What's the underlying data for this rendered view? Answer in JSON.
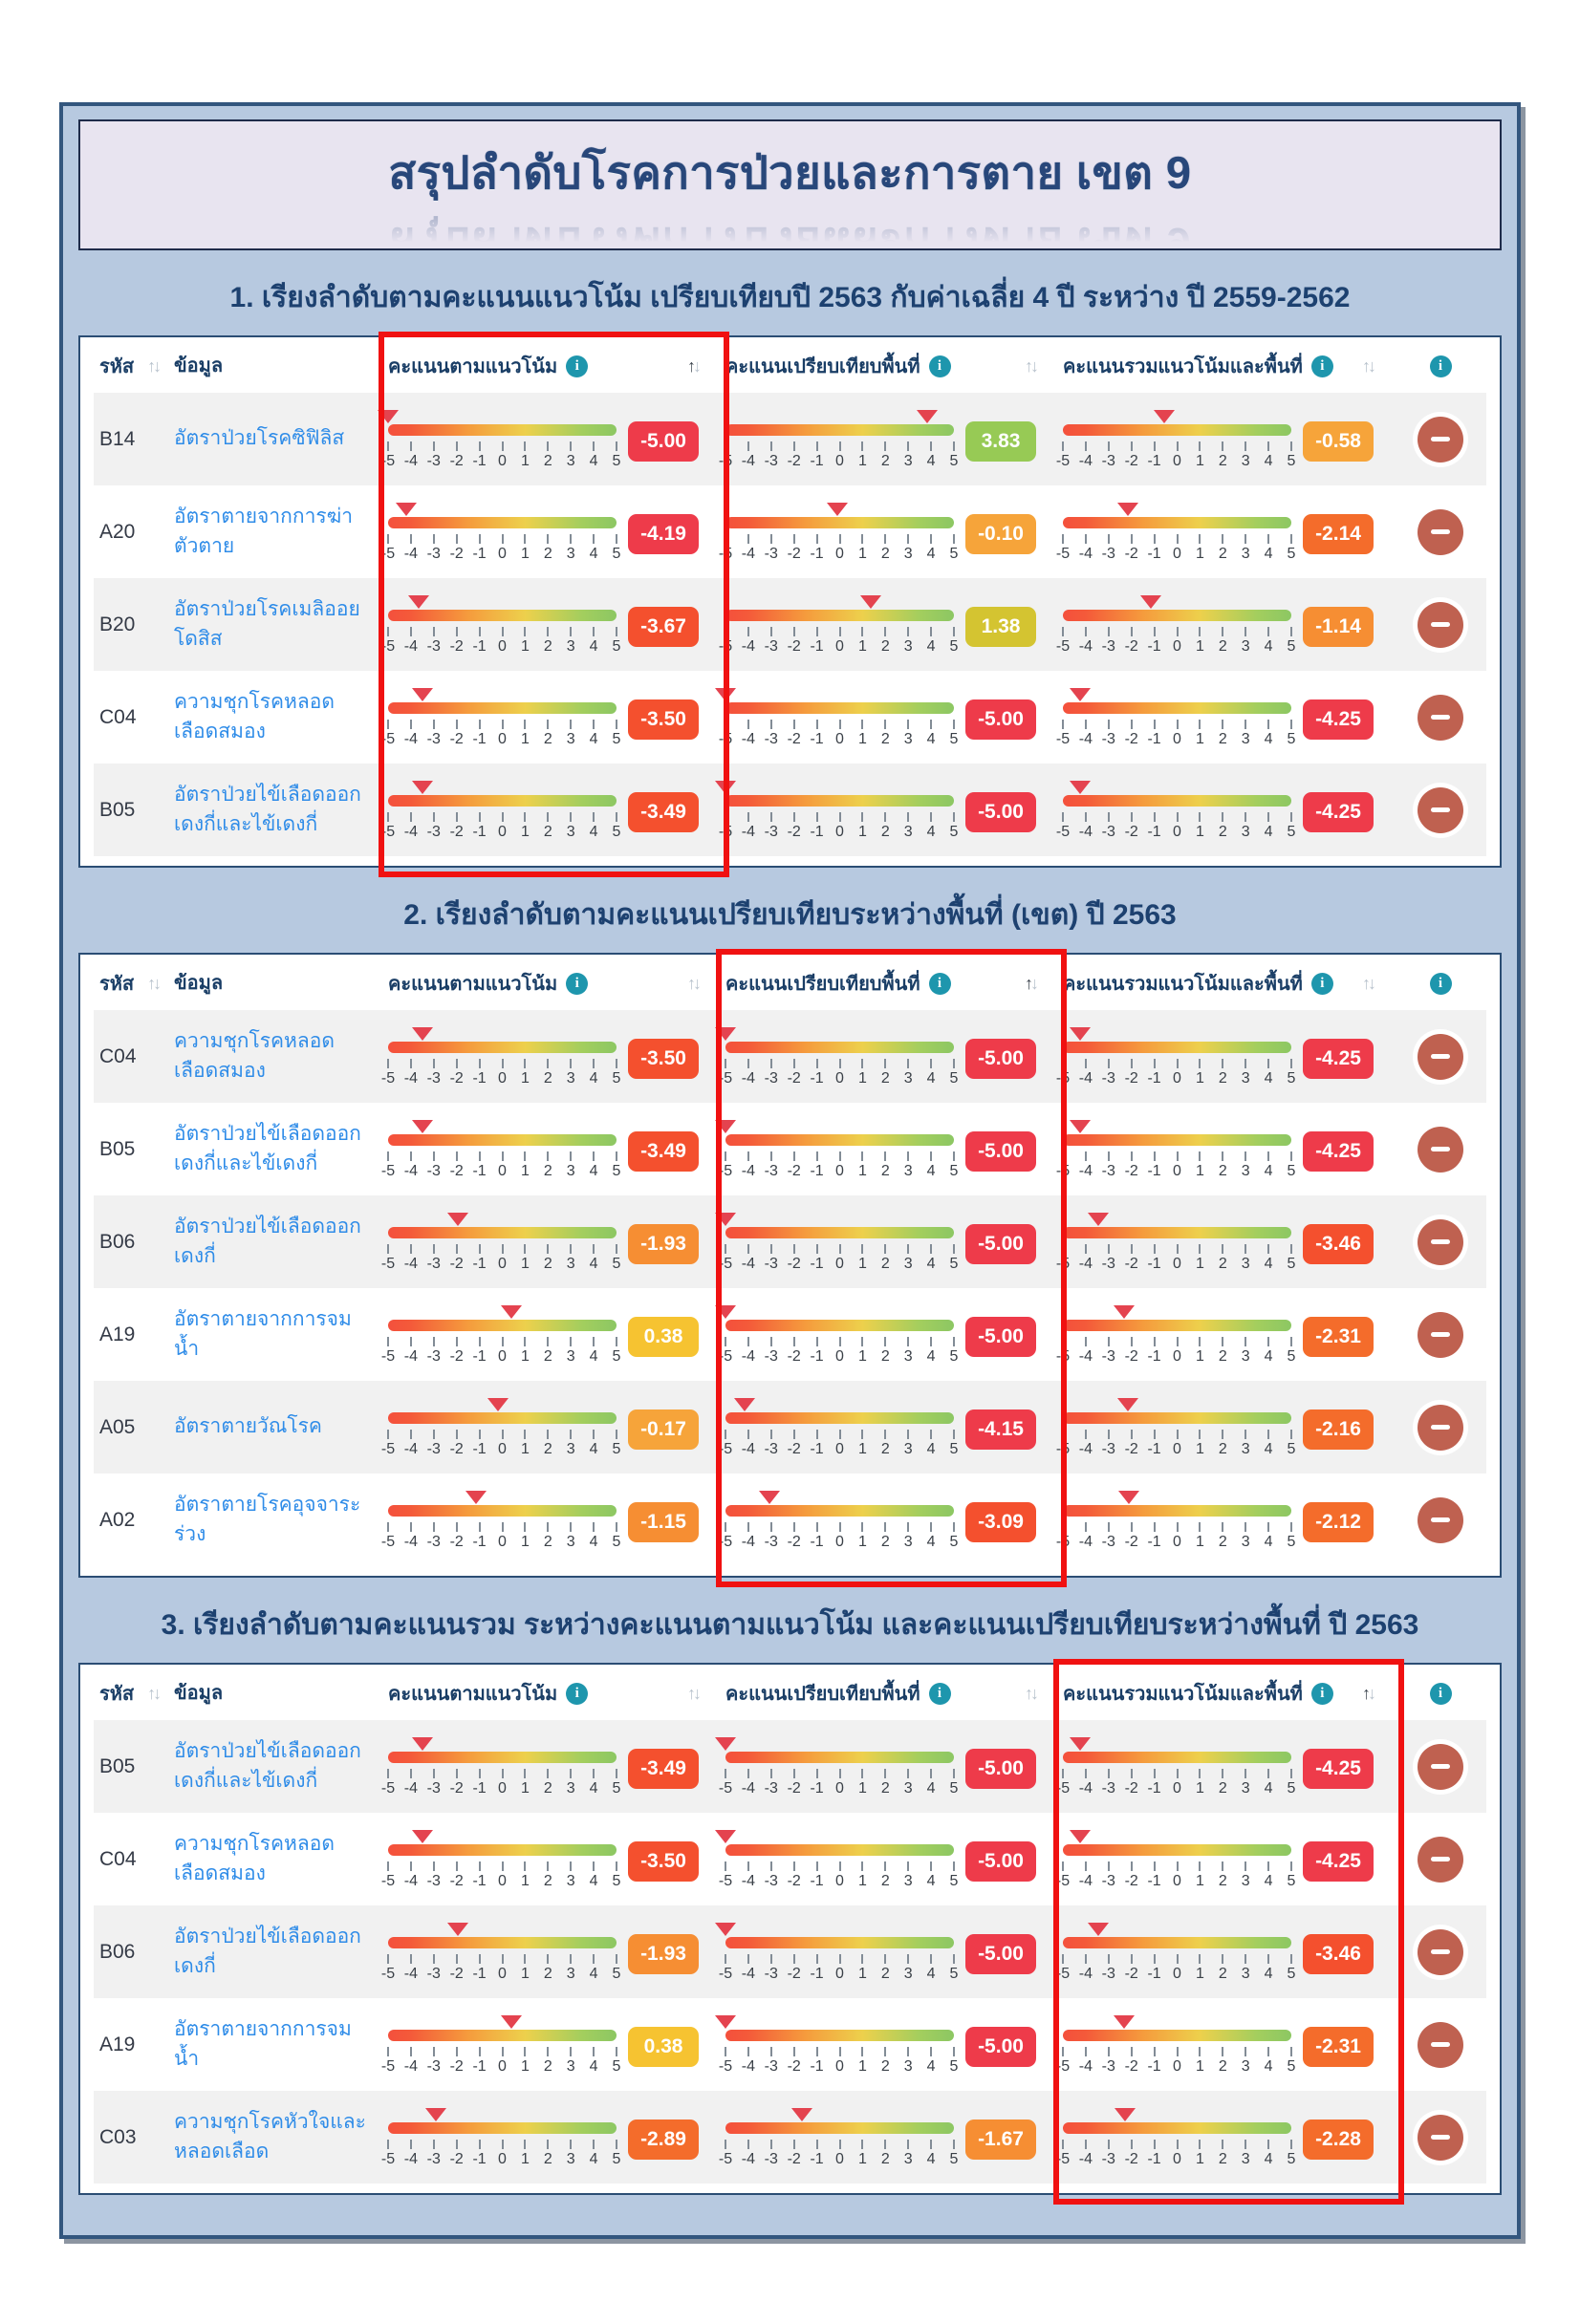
{
  "page": {
    "title": "สรุปลำดับโรคการป่วยและการตาย เขต 9"
  },
  "icons": {
    "info": "i",
    "sort_up": "↑",
    "sort_down": "↓",
    "minus": "−",
    "marker": "▼"
  },
  "colors": {
    "panel_bg": "#b7c9e0",
    "panel_border": "#33567e",
    "title_box_bg": "#e8e4f0",
    "title_text": "#28477a",
    "section_title_text": "#1d4170",
    "header_text": "#1a3e66",
    "link_text": "#2f8ce8",
    "row_stripe": "#f1f1f1",
    "info_icon": "#1e96ad",
    "minus_button": "#bf6150",
    "highlight_border": "#f01111",
    "marker": "#e4434f"
  },
  "scale": {
    "min": -5,
    "max": 5,
    "ticks": [
      "-5",
      "-4",
      "-3",
      "-2",
      "-1",
      "0",
      "1",
      "2",
      "3",
      "4",
      "5"
    ]
  },
  "ui": {
    "code_label": "รหัส",
    "data_label": "ข้อมูล",
    "score_columns": [
      "คะแนนตามแนวโน้ม",
      "คะแนนเปรียบเทียบพื้นที่",
      "คะแนนรวมแนวโน้มและพื้นที่"
    ]
  },
  "sections": [
    {
      "title": "1. เรียงลำดับตามคะแนนแนวโน้ม เปรียบเทียบปี 2563 กับค่าเฉลี่ย 4 ปี ระหว่าง ปี 2559-2562",
      "highlight_col": 1,
      "sorted_col": 1,
      "rows": [
        {
          "code": "B14",
          "name": "อัตราป่วยโรคซิฟิลิส",
          "scores": [
            {
              "value": "-5.00",
              "color": "#ee3b4a"
            },
            {
              "value": "3.83",
              "color": "#97ca55"
            },
            {
              "value": "-0.58",
              "color": "#f6a43a"
            }
          ]
        },
        {
          "code": "A20",
          "name": "อัตราตายจากการฆ่าตัวตาย",
          "scores": [
            {
              "value": "-4.19",
              "color": "#ee3b4a"
            },
            {
              "value": "-0.10",
              "color": "#f6a43a"
            },
            {
              "value": "-2.14",
              "color": "#f46c2b"
            }
          ]
        },
        {
          "code": "B20",
          "name": "อัตราป่วยโรคเมลิออยโดสิส",
          "scores": [
            {
              "value": "-3.67",
              "color": "#f4502e"
            },
            {
              "value": "1.38",
              "color": "#d4c431"
            },
            {
              "value": "-1.14",
              "color": "#f68e33"
            }
          ]
        },
        {
          "code": "C04",
          "name": "ความชุกโรคหลอดเลือดสมอง",
          "scores": [
            {
              "value": "-3.50",
              "color": "#f4502e"
            },
            {
              "value": "-5.00",
              "color": "#ee3b4a"
            },
            {
              "value": "-4.25",
              "color": "#ee3b4a"
            }
          ]
        },
        {
          "code": "B05",
          "name": "อัตราป่วยไข้เลือดออกเดงกี่และไข้เดงกี่",
          "scores": [
            {
              "value": "-3.49",
              "color": "#f4502e"
            },
            {
              "value": "-5.00",
              "color": "#ee3b4a"
            },
            {
              "value": "-4.25",
              "color": "#ee3b4a"
            }
          ]
        }
      ]
    },
    {
      "title": "2. เรียงลำดับตามคะแนนเปรียบเทียบระหว่างพื้นที่ (เขต) ปี 2563",
      "highlight_col": 2,
      "sorted_col": 2,
      "rows": [
        {
          "code": "C04",
          "name": "ความชุกโรคหลอดเลือดสมอง",
          "scores": [
            {
              "value": "-3.50",
              "color": "#f4502e"
            },
            {
              "value": "-5.00",
              "color": "#ee3b4a"
            },
            {
              "value": "-4.25",
              "color": "#ee3b4a"
            }
          ]
        },
        {
          "code": "B05",
          "name": "อัตราป่วยไข้เลือดออกเดงกี่และไข้เดงกี่",
          "scores": [
            {
              "value": "-3.49",
              "color": "#f4502e"
            },
            {
              "value": "-5.00",
              "color": "#ee3b4a"
            },
            {
              "value": "-4.25",
              "color": "#ee3b4a"
            }
          ]
        },
        {
          "code": "B06",
          "name": "อัตราป่วยไข้เลือดออกเดงกี่",
          "scores": [
            {
              "value": "-1.93",
              "color": "#f68e33"
            },
            {
              "value": "-5.00",
              "color": "#ee3b4a"
            },
            {
              "value": "-3.46",
              "color": "#f4502e"
            }
          ]
        },
        {
          "code": "A19",
          "name": "อัตราตายจากการจมน้ำ",
          "scores": [
            {
              "value": "0.38",
              "color": "#f6c331"
            },
            {
              "value": "-5.00",
              "color": "#ee3b4a"
            },
            {
              "value": "-2.31",
              "color": "#f46c2b"
            }
          ]
        },
        {
          "code": "A05",
          "name": "อัตราตายวัณโรค",
          "scores": [
            {
              "value": "-0.17",
              "color": "#f6a43a"
            },
            {
              "value": "-4.15",
              "color": "#ee3b4a"
            },
            {
              "value": "-2.16",
              "color": "#f46c2b"
            }
          ]
        },
        {
          "code": "A02",
          "name": "อัตราตายโรคอุจจาระร่วง",
          "scores": [
            {
              "value": "-1.15",
              "color": "#f68e33"
            },
            {
              "value": "-3.09",
              "color": "#f4502e"
            },
            {
              "value": "-2.12",
              "color": "#f46c2b"
            }
          ]
        }
      ]
    },
    {
      "title": "3. เรียงลำดับตามคะแนนรวม ระหว่างคะแนนตามแนวโน้ม และคะแนนเปรียบเทียบระหว่างพื้นที่ ปี 2563",
      "highlight_col": 3,
      "sorted_col": 3,
      "rows": [
        {
          "code": "B05",
          "name": "อัตราป่วยไข้เลือดออกเดงกี่และไข้เดงกี่",
          "scores": [
            {
              "value": "-3.49",
              "color": "#f4502e"
            },
            {
              "value": "-5.00",
              "color": "#ee3b4a"
            },
            {
              "value": "-4.25",
              "color": "#ee3b4a"
            }
          ]
        },
        {
          "code": "C04",
          "name": "ความชุกโรคหลอดเลือดสมอง",
          "scores": [
            {
              "value": "-3.50",
              "color": "#f4502e"
            },
            {
              "value": "-5.00",
              "color": "#ee3b4a"
            },
            {
              "value": "-4.25",
              "color": "#ee3b4a"
            }
          ]
        },
        {
          "code": "B06",
          "name": "อัตราป่วยไข้เลือดออกเดงกี่",
          "scores": [
            {
              "value": "-1.93",
              "color": "#f68e33"
            },
            {
              "value": "-5.00",
              "color": "#ee3b4a"
            },
            {
              "value": "-3.46",
              "color": "#f4502e"
            }
          ]
        },
        {
          "code": "A19",
          "name": "อัตราตายจากการจมน้ำ",
          "scores": [
            {
              "value": "0.38",
              "color": "#f6c331"
            },
            {
              "value": "-5.00",
              "color": "#ee3b4a"
            },
            {
              "value": "-2.31",
              "color": "#f46c2b"
            }
          ]
        },
        {
          "code": "C03",
          "name": "ความชุกโรคหัวใจและหลอดเลือด",
          "scores": [
            {
              "value": "-2.89",
              "color": "#f46c2b"
            },
            {
              "value": "-1.67",
              "color": "#f68e33"
            },
            {
              "value": "-2.28",
              "color": "#f46c2b"
            }
          ]
        }
      ]
    }
  ]
}
